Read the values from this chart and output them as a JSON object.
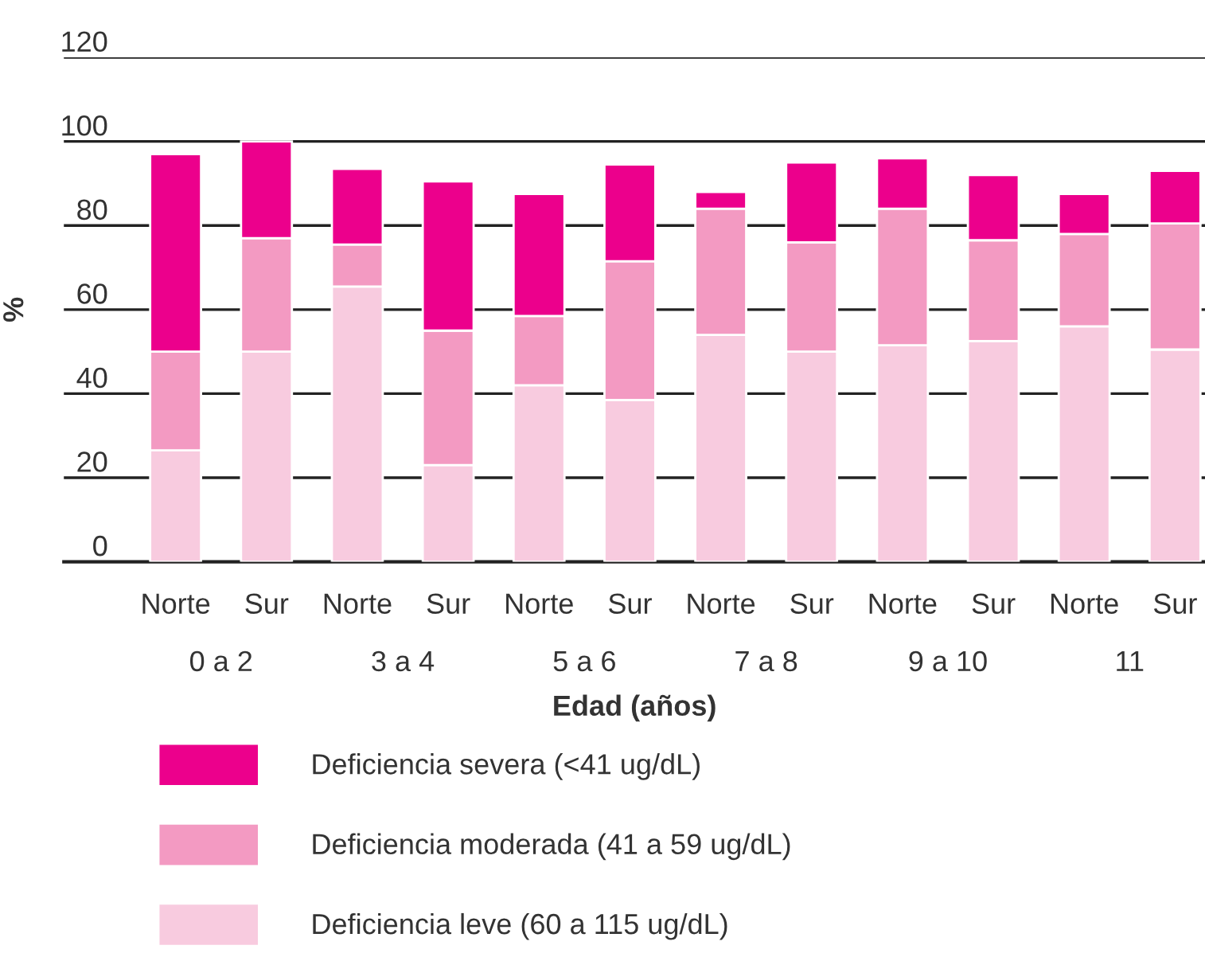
{
  "chart_data": {
    "type": "bar",
    "stacked": true,
    "xlabel": "Edad (años)",
    "ylabel": "%",
    "categories": [
      "Norte",
      "Sur",
      "Norte",
      "Sur",
      "Norte",
      "Sur",
      "Norte",
      "Sur",
      "Norte",
      "Sur",
      "Norte",
      "Sur"
    ],
    "annotations": [
      "0 a 2",
      "3 a 4",
      "5 a 6",
      "7 a 8",
      "9 a 10",
      "11"
    ],
    "series": [
      {
        "name": "Deficiencia leve (60 a 115 ug/dL)",
        "color": "#f8cbdf",
        "values": [
          26.5,
          50,
          65.5,
          23,
          42,
          38.5,
          54,
          50,
          51.5,
          52.5,
          56,
          50.5
        ]
      },
      {
        "name": "Deficiencia moderada (41 a 59 ug/dL)",
        "color": "#f39ac2",
        "values": [
          23.5,
          27,
          10,
          32,
          16.5,
          33,
          30,
          26,
          32.5,
          24,
          22,
          30
        ]
      },
      {
        "name": "Deficiencia severa (<41 ug/dL)",
        "color": "#ec008c",
        "values": [
          47,
          23,
          18,
          35.5,
          29,
          23,
          4,
          19,
          12,
          15.5,
          9.5,
          12.5
        ]
      }
    ],
    "ylim": [
      0,
      120
    ],
    "yticks": [
      0,
      20,
      40,
      60,
      80,
      100,
      120
    ],
    "grid": "y",
    "legend": "bottom"
  }
}
